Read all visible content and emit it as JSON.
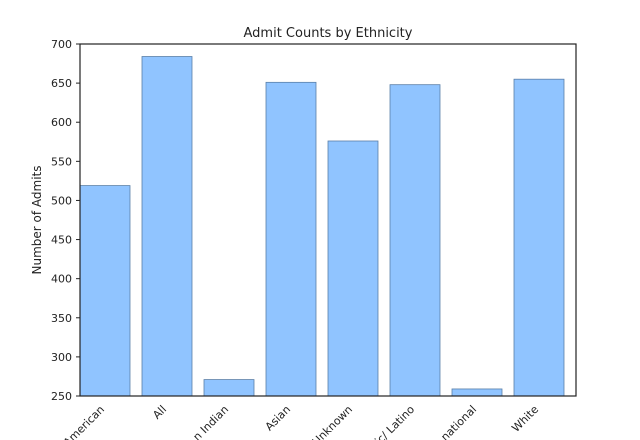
{
  "chart_data": {
    "type": "bar",
    "title": "Admit Counts by Ethnicity",
    "xlabel": "",
    "ylabel": "Number of Admits",
    "categories": [
      "African American",
      "All",
      "American Indian",
      "Asian",
      "Unknown",
      "Hispanic/ Latino",
      "International",
      "White"
    ],
    "tick_labels_visible": [
      "American",
      "All",
      "n Indian",
      "Asian",
      "Unknown",
      "ic/ Latino",
      "national",
      "White"
    ],
    "values": [
      519,
      684,
      271,
      651,
      576,
      648,
      259,
      655
    ],
    "ylim": [
      250,
      700
    ],
    "yticks": [
      250,
      300,
      350,
      400,
      450,
      500,
      550,
      600,
      650,
      700
    ],
    "grid": false,
    "bar_color": "#90c4ff",
    "bar_edge_color": "#5a7fa8"
  }
}
